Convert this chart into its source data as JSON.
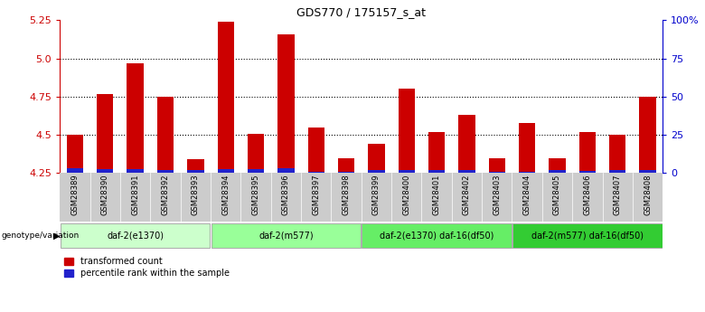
{
  "title": "GDS770 / 175157_s_at",
  "samples": [
    "GSM28389",
    "GSM28390",
    "GSM28391",
    "GSM28392",
    "GSM28393",
    "GSM28394",
    "GSM28395",
    "GSM28396",
    "GSM28397",
    "GSM28398",
    "GSM28399",
    "GSM28400",
    "GSM28401",
    "GSM28402",
    "GSM28403",
    "GSM28404",
    "GSM28405",
    "GSM28406",
    "GSM28407",
    "GSM28408"
  ],
  "red_values": [
    4.5,
    4.77,
    4.97,
    4.75,
    4.34,
    5.24,
    4.51,
    5.16,
    4.55,
    4.35,
    4.44,
    4.8,
    4.52,
    4.63,
    4.35,
    4.58,
    4.35,
    4.52,
    4.5,
    4.75
  ],
  "blue_heights": [
    0.03,
    0.028,
    0.026,
    0.022,
    0.018,
    0.028,
    0.028,
    0.032,
    0.01,
    0.008,
    0.022,
    0.02,
    0.022,
    0.022,
    0.008,
    0.01,
    0.02,
    0.016,
    0.022,
    0.022
  ],
  "ymin": 4.25,
  "ymax": 5.25,
  "yticks": [
    4.25,
    4.5,
    4.75,
    5.0,
    5.25
  ],
  "y2ticks": [
    0,
    25,
    50,
    75,
    100
  ],
  "y2labels": [
    "0",
    "25",
    "50",
    "75",
    "100%"
  ],
  "bar_color_red": "#cc0000",
  "bar_color_blue": "#2222cc",
  "bar_width": 0.55,
  "groups": [
    {
      "label": "daf-2(e1370)",
      "start": 0,
      "end": 5,
      "color": "#ccffcc"
    },
    {
      "label": "daf-2(m577)",
      "start": 5,
      "end": 10,
      "color": "#99ff99"
    },
    {
      "label": "daf-2(e1370) daf-16(df50)",
      "start": 10,
      "end": 15,
      "color": "#66ee66"
    },
    {
      "label": "daf-2(m577) daf-16(df50)",
      "start": 15,
      "end": 20,
      "color": "#33cc33"
    }
  ],
  "group_row_label": "genotype/variation",
  "legend_red": "transformed count",
  "legend_blue": "percentile rank within the sample",
  "title_color": "#000000",
  "left_axis_color": "#cc0000",
  "right_axis_color": "#0000cc",
  "xtick_bg": "#cccccc"
}
